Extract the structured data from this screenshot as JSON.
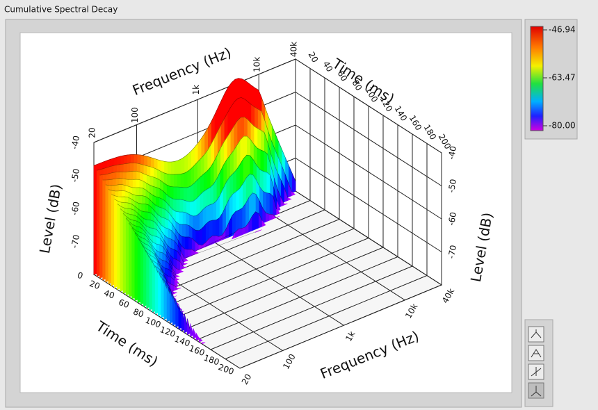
{
  "window": {
    "title": "Cumulative Spectral Decay"
  },
  "plot": {
    "frequency_label": "Frequency (Hz)",
    "time_label": "Time (ms)",
    "level_label": "Level (dB)",
    "frequency_ticks": [
      "20",
      "100",
      "1k",
      "10k",
      "40k"
    ],
    "time_ticks": [
      "0",
      "20",
      "40",
      "60",
      "80",
      "100",
      "120",
      "140",
      "160",
      "180",
      "200"
    ],
    "level_ticks": [
      "-40",
      "-50",
      "-60",
      "-70"
    ]
  },
  "color_scale": {
    "labels": [
      "-46.94",
      "-63.47",
      "-80.00"
    ]
  }
}
